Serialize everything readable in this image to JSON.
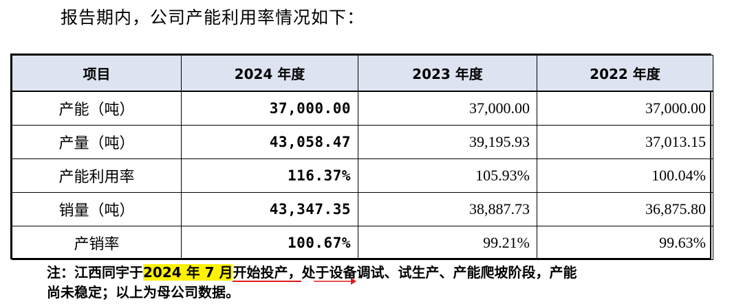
{
  "intro_text": "报告期内，公司产能利用率情况如下：",
  "table": {
    "headers": [
      "项目",
      "2024 年度",
      "2023 年度",
      "2022 年度"
    ],
    "rows": [
      {
        "item": "产能（吨）",
        "y2024": "37,000.00",
        "y2023": "37,000.00",
        "y2022": "37,000.00"
      },
      {
        "item": "产量（吨）",
        "y2024": "43,058.47",
        "y2023": "39,195.93",
        "y2022": "37,013.15"
      },
      {
        "item": "产能利用率",
        "y2024": "116.37%",
        "y2023": "105.93%",
        "y2022": "100.04%"
      },
      {
        "item": "销量（吨）",
        "y2024": "43,347.35",
        "y2023": "38,887.73",
        "y2022": "36,875.80"
      },
      {
        "item": "产销率",
        "y2024": "100.67%",
        "y2023": "99.21%",
        "y2022": "99.63%"
      }
    ]
  },
  "note": {
    "prefix": "注：江西同宇于",
    "highlight": "2024 年 7 月",
    "underlined": "开始投产，",
    "rest_line1": "处于设备调试、试生产、产能爬坡阶段，产能",
    "line2": "尚未稳定；以上为母公司数据。"
  },
  "colors": {
    "header_bg": "#dde3f0",
    "highlight": "#fff200",
    "annotation_red": "#e0191a"
  }
}
